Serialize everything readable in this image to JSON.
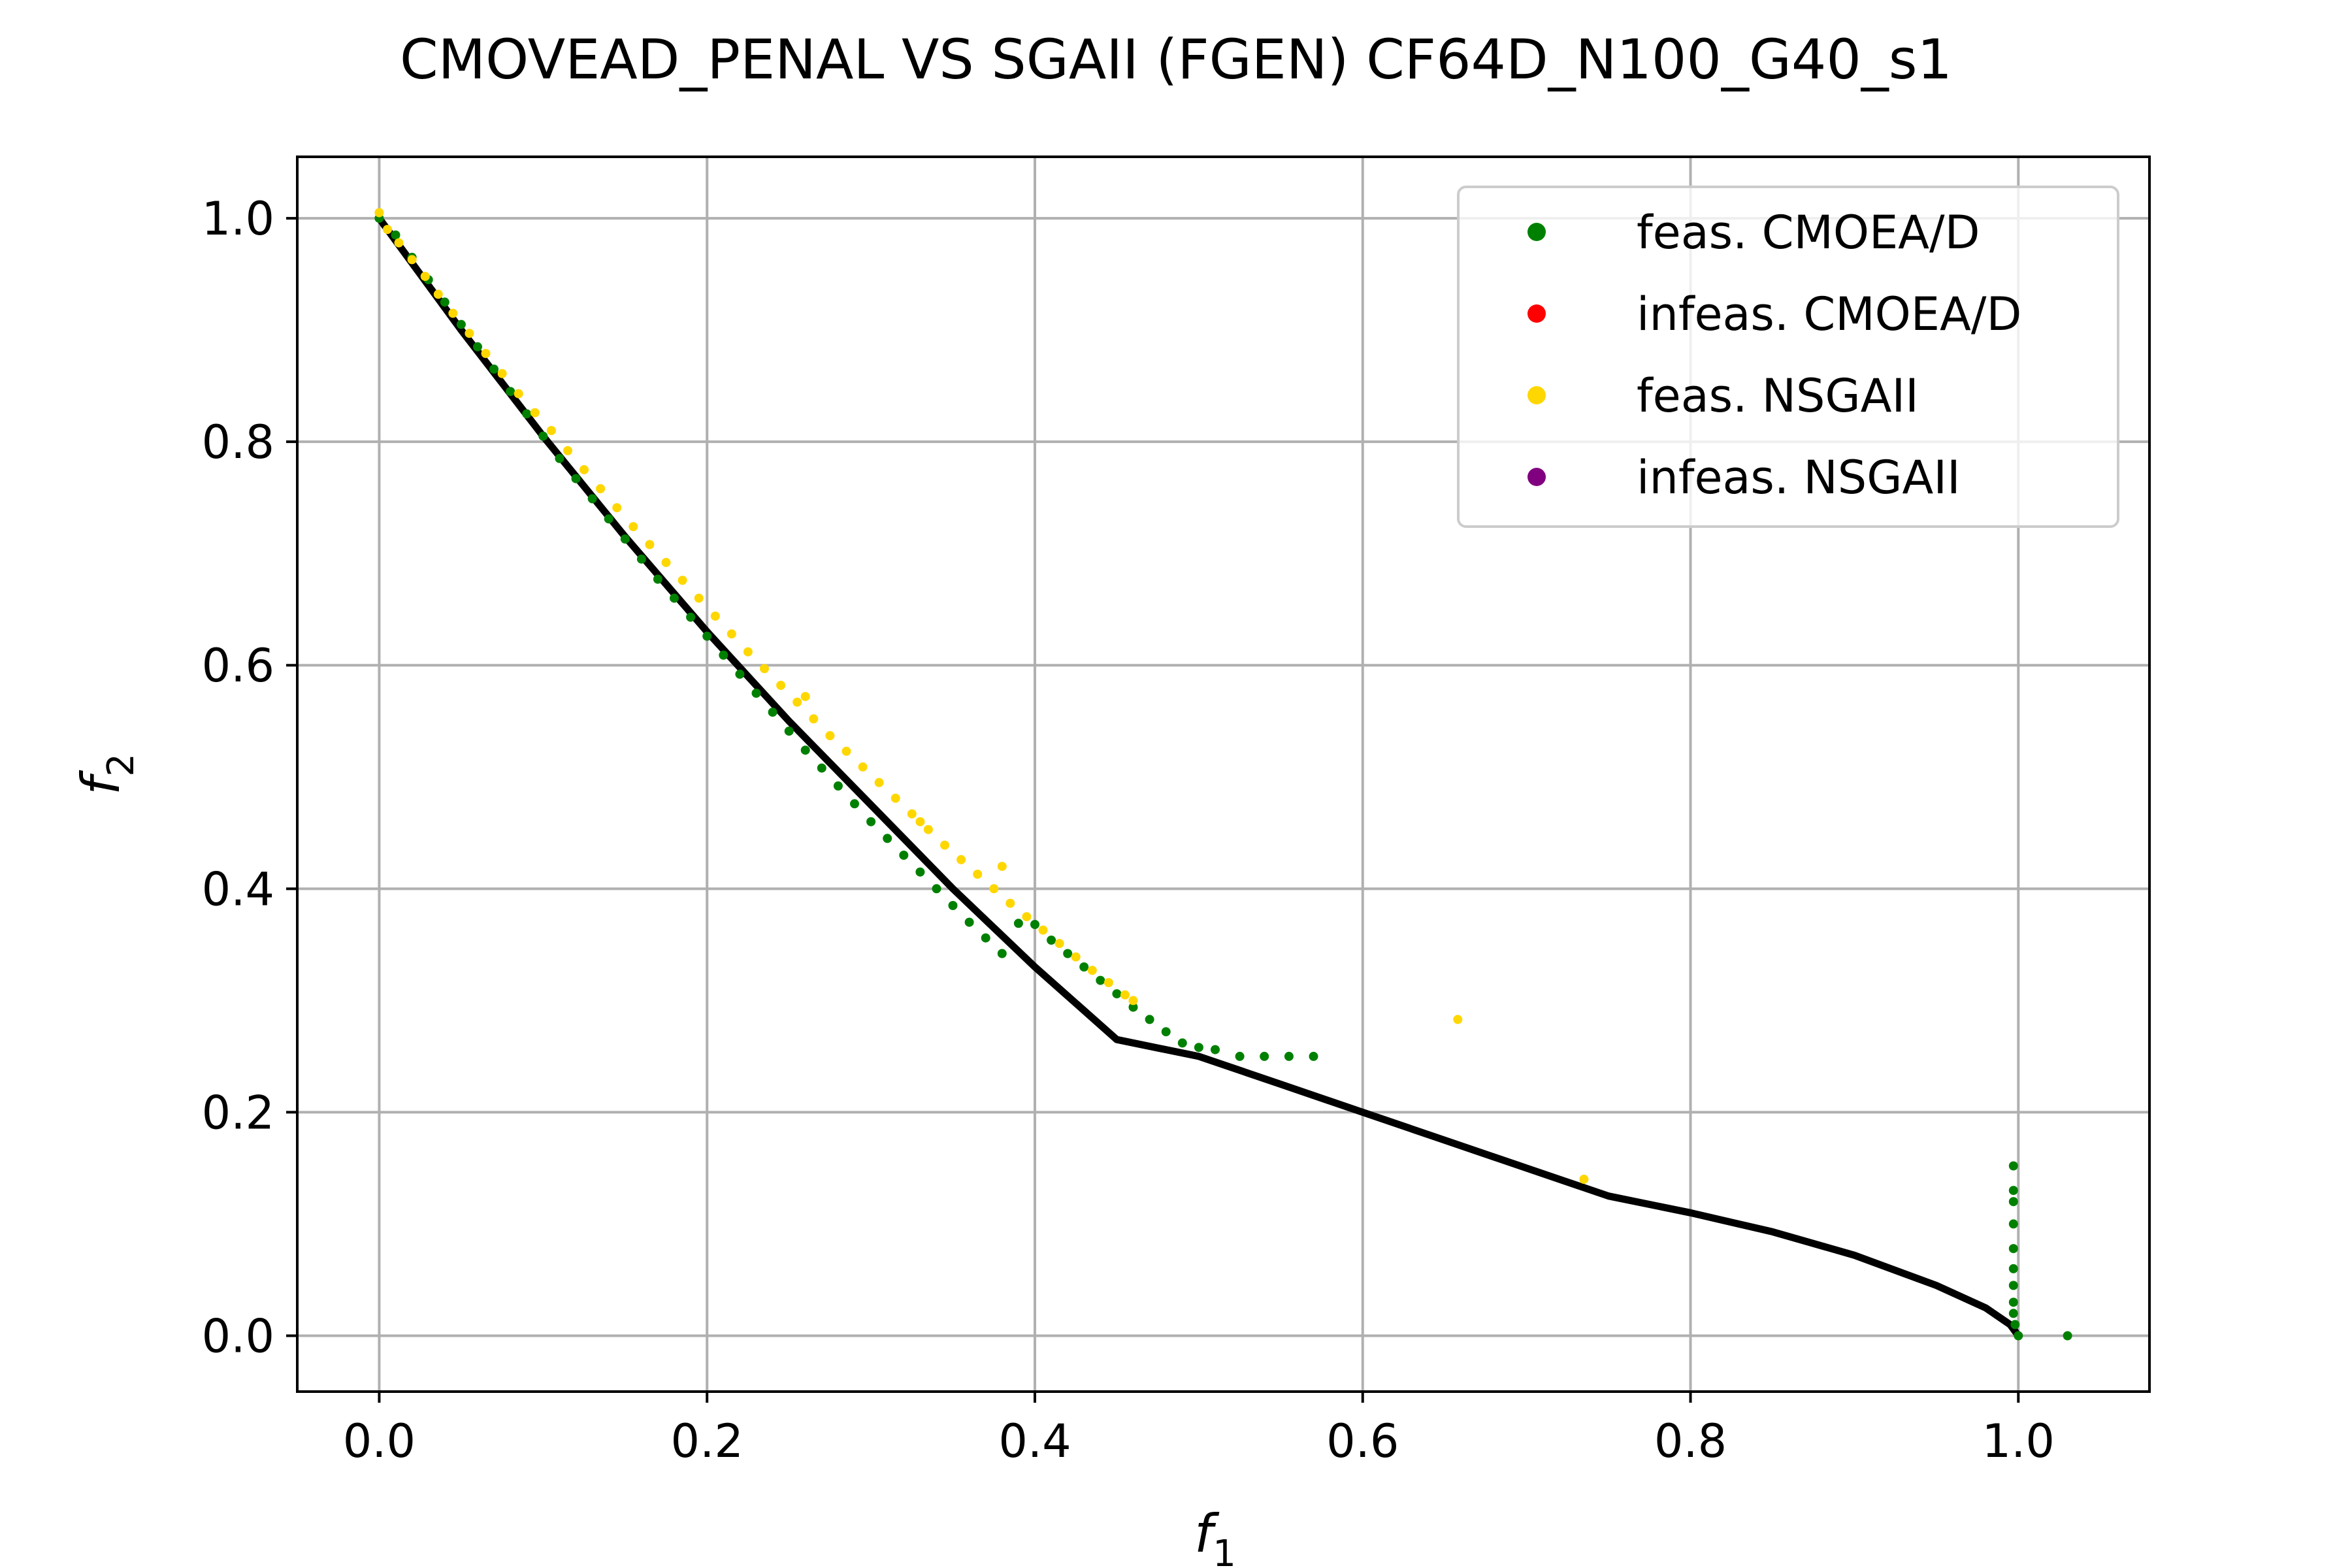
{
  "chart_data": {
    "type": "scatter",
    "title": "CMOVEAD_PENAL VS SGAII (FGEN) CF64D_N100_G40_s1",
    "xlabel": {
      "base": "f",
      "sub": "1"
    },
    "ylabel": {
      "base": "f",
      "sub": "2"
    },
    "xlim": [
      -0.05,
      1.08
    ],
    "ylim": [
      -0.05,
      1.055
    ],
    "xticks": [
      0.0,
      0.2,
      0.4,
      0.6,
      0.8,
      1.0
    ],
    "yticks": [
      0.0,
      0.2,
      0.4,
      0.6,
      0.8,
      1.0
    ],
    "xtick_labels": [
      "0.0",
      "0.2",
      "0.4",
      "0.6",
      "0.8",
      "1.0"
    ],
    "ytick_labels": [
      "0.0",
      "0.2",
      "0.4",
      "0.6",
      "0.8",
      "1.0"
    ],
    "grid": true,
    "legend_position": "top-right",
    "pareto_front": {
      "color": "#000000",
      "x": [
        0.0,
        0.05,
        0.1,
        0.15,
        0.2,
        0.25,
        0.3,
        0.35,
        0.4,
        0.45,
        0.5,
        0.55,
        0.6,
        0.65,
        0.7,
        0.75,
        0.8,
        0.85,
        0.9,
        0.95,
        0.98,
        0.995,
        1.0
      ],
      "y": [
        1.0,
        0.9,
        0.805,
        0.715,
        0.63,
        0.55,
        0.475,
        0.4,
        0.33,
        0.265,
        0.25,
        0.225,
        0.2,
        0.175,
        0.15,
        0.125,
        0.11,
        0.093,
        0.072,
        0.045,
        0.025,
        0.01,
        0.0
      ]
    },
    "series": [
      {
        "name": "feas. CMOEA/D",
        "color": "#008000",
        "x": [
          0.0,
          0.01,
          0.02,
          0.03,
          0.04,
          0.05,
          0.06,
          0.07,
          0.08,
          0.09,
          0.1,
          0.11,
          0.12,
          0.13,
          0.14,
          0.15,
          0.16,
          0.17,
          0.18,
          0.19,
          0.2,
          0.21,
          0.22,
          0.23,
          0.24,
          0.25,
          0.26,
          0.27,
          0.28,
          0.29,
          0.3,
          0.31,
          0.32,
          0.33,
          0.34,
          0.35,
          0.36,
          0.37,
          0.38,
          0.39,
          0.4,
          0.41,
          0.42,
          0.43,
          0.44,
          0.45,
          0.46,
          0.47,
          0.48,
          0.49,
          0.5,
          0.51,
          0.525,
          0.54,
          0.555,
          0.57,
          0.997,
          0.997,
          0.997,
          0.997,
          0.997,
          0.997,
          0.997,
          0.997,
          0.997,
          0.998,
          1.0,
          1.03
        ],
        "y": [
          1.0,
          0.985,
          0.965,
          0.945,
          0.925,
          0.905,
          0.885,
          0.865,
          0.845,
          0.825,
          0.805,
          0.785,
          0.767,
          0.749,
          0.731,
          0.713,
          0.695,
          0.677,
          0.66,
          0.643,
          0.626,
          0.609,
          0.592,
          0.575,
          0.558,
          0.541,
          0.524,
          0.508,
          0.492,
          0.476,
          0.46,
          0.445,
          0.43,
          0.415,
          0.4,
          0.385,
          0.37,
          0.356,
          0.342,
          0.369,
          0.368,
          0.354,
          0.342,
          0.33,
          0.318,
          0.306,
          0.294,
          0.283,
          0.272,
          0.262,
          0.258,
          0.256,
          0.25,
          0.25,
          0.25,
          0.25,
          0.152,
          0.13,
          0.12,
          0.1,
          0.078,
          0.06,
          0.045,
          0.03,
          0.02,
          0.01,
          0.0,
          0.0
        ]
      },
      {
        "name": "infeas. CMOEA/D",
        "color": "#ff0000",
        "x": [],
        "y": []
      },
      {
        "name": "feas. NSGAII",
        "color": "#ffd700",
        "x": [
          0.0,
          0.005,
          0.012,
          0.02,
          0.028,
          0.036,
          0.045,
          0.055,
          0.065,
          0.075,
          0.085,
          0.095,
          0.105,
          0.115,
          0.125,
          0.135,
          0.145,
          0.155,
          0.165,
          0.175,
          0.185,
          0.195,
          0.205,
          0.215,
          0.225,
          0.235,
          0.245,
          0.255,
          0.26,
          0.265,
          0.275,
          0.285,
          0.295,
          0.305,
          0.315,
          0.325,
          0.33,
          0.335,
          0.345,
          0.355,
          0.365,
          0.375,
          0.38,
          0.385,
          0.395,
          0.405,
          0.415,
          0.425,
          0.435,
          0.445,
          0.455,
          0.46,
          0.658,
          0.735
        ],
        "y": [
          1.005,
          0.99,
          0.978,
          0.963,
          0.948,
          0.932,
          0.915,
          0.897,
          0.879,
          0.861,
          0.843,
          0.826,
          0.81,
          0.792,
          0.775,
          0.758,
          0.741,
          0.724,
          0.708,
          0.692,
          0.676,
          0.66,
          0.644,
          0.628,
          0.612,
          0.597,
          0.582,
          0.567,
          0.572,
          0.552,
          0.537,
          0.523,
          0.509,
          0.495,
          0.481,
          0.467,
          0.46,
          0.453,
          0.439,
          0.426,
          0.413,
          0.4,
          0.42,
          0.387,
          0.375,
          0.363,
          0.351,
          0.339,
          0.327,
          0.316,
          0.305,
          0.3,
          0.283,
          0.14
        ]
      },
      {
        "name": "infeas. NSGAII",
        "color": "#800080",
        "x": [],
        "y": []
      }
    ]
  }
}
